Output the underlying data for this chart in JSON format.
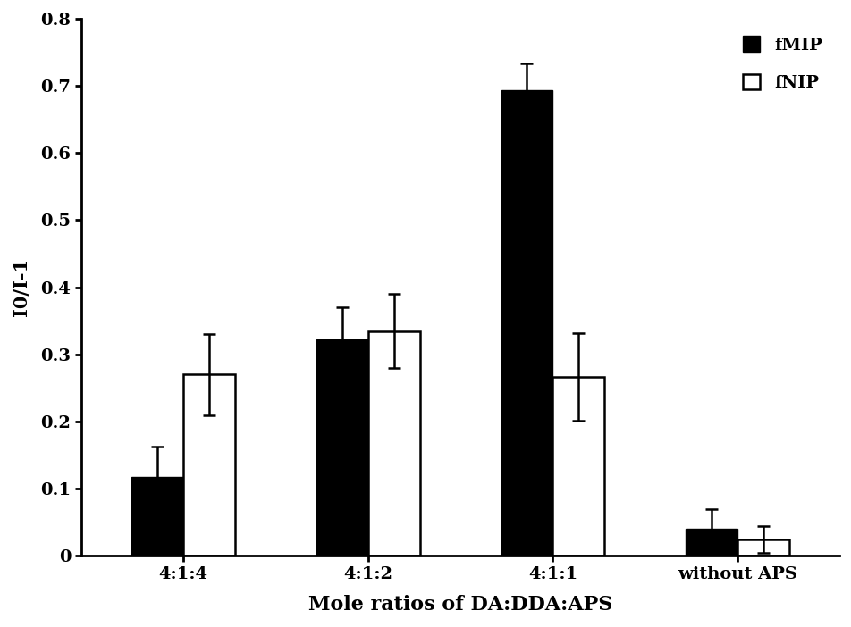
{
  "categories": [
    "4:1:4",
    "4:1:2",
    "4:1:1",
    "without APS"
  ],
  "fMIP_values": [
    0.118,
    0.322,
    0.693,
    0.04
  ],
  "fNIP_values": [
    0.27,
    0.335,
    0.267,
    0.025
  ],
  "fMIP_errors": [
    0.045,
    0.048,
    0.04,
    0.03
  ],
  "fNIP_errors": [
    0.06,
    0.055,
    0.065,
    0.02
  ],
  "fMIP_color": "#000000",
  "fNIP_color": "#ffffff",
  "fNIP_edgecolor": "#000000",
  "ylabel": "I0/I-1",
  "xlabel": "Mole ratios of DA:DDA:APS",
  "ylim": [
    0,
    0.8
  ],
  "yticks": [
    0,
    0.1,
    0.2,
    0.3,
    0.4,
    0.5,
    0.6,
    0.7,
    0.8
  ],
  "ytick_labels": [
    "0",
    "0.1",
    "0.2",
    "0.3",
    "0.4",
    "0.5",
    "0.6",
    "0.7",
    "0.8"
  ],
  "bar_width": 0.28,
  "x_positions": [
    0,
    1.0,
    2.0,
    3.0
  ],
  "legend_fMIP": "fMIP",
  "legend_fNIP": "fNIP",
  "axis_fontsize": 15,
  "tick_fontsize": 14,
  "legend_fontsize": 14,
  "xlabel_fontsize": 16,
  "background_color": "#ffffff"
}
